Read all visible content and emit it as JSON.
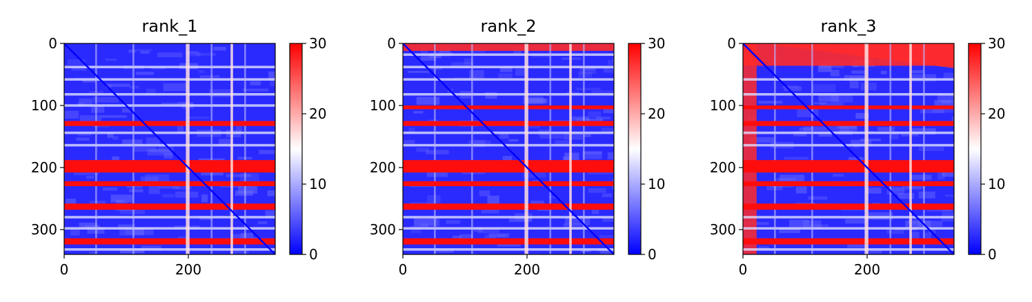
{
  "chart_data": [
    {
      "type": "heatmap",
      "title": "rank_1",
      "xlim": [
        0,
        340
      ],
      "ylim": [
        340,
        0
      ],
      "x_ticks": [
        0,
        200
      ],
      "y_ticks": [
        0,
        100,
        200,
        300
      ],
      "colorbar": {
        "range": [
          0,
          30
        ],
        "ticks": [
          0,
          10,
          20,
          30
        ],
        "colormap": [
          "#0000ff",
          "#ffffff",
          "#ff0000"
        ]
      },
      "red_bands": [
        [
          125,
          133
        ],
        [
          188,
          208
        ],
        [
          222,
          230
        ],
        [
          258,
          268
        ],
        [
          314,
          324
        ]
      ],
      "light_bands": [
        [
          36,
          40
        ],
        [
          56,
          60
        ],
        [
          80,
          84
        ],
        [
          98,
          102
        ],
        [
          142,
          146
        ],
        [
          162,
          166
        ],
        [
          278,
          282
        ],
        [
          296,
          300
        ],
        [
          330,
          334
        ]
      ],
      "pale_cols": [
        [
          50,
          53
        ],
        [
          110,
          113
        ],
        [
          236,
          239
        ],
        [
          290,
          293
        ]
      ],
      "white_cols": [
        [
          196,
          202
        ],
        [
          268,
          272
        ]
      ],
      "top_red_band": 0,
      "left_red_band": 0,
      "upper_right_red": false
    },
    {
      "type": "heatmap",
      "title": "rank_2",
      "xlim": [
        0,
        340
      ],
      "ylim": [
        340,
        0
      ],
      "x_ticks": [
        0,
        200
      ],
      "y_ticks": [
        0,
        100,
        200,
        300
      ],
      "colorbar": {
        "range": [
          0,
          30
        ],
        "ticks": [
          0,
          10,
          20,
          30
        ],
        "colormap": [
          "#0000ff",
          "#ffffff",
          "#ff0000"
        ]
      },
      "red_bands": [
        [
          100,
          106
        ],
        [
          125,
          133
        ],
        [
          188,
          208
        ],
        [
          222,
          230
        ],
        [
          258,
          268
        ],
        [
          314,
          324
        ]
      ],
      "light_bands": [
        [
          16,
          20
        ],
        [
          36,
          40
        ],
        [
          56,
          60
        ],
        [
          80,
          84
        ],
        [
          142,
          146
        ],
        [
          162,
          166
        ],
        [
          278,
          282
        ],
        [
          296,
          300
        ],
        [
          330,
          334
        ]
      ],
      "pale_cols": [
        [
          50,
          53
        ],
        [
          110,
          113
        ],
        [
          236,
          239
        ],
        [
          290,
          293
        ]
      ],
      "white_cols": [
        [
          196,
          202
        ],
        [
          268,
          272
        ]
      ],
      "top_red_band": 12,
      "left_red_band": 0,
      "upper_right_red": false
    },
    {
      "type": "heatmap",
      "title": "rank_3",
      "xlim": [
        0,
        340
      ],
      "ylim": [
        340,
        0
      ],
      "x_ticks": [
        0,
        200
      ],
      "y_ticks": [
        0,
        100,
        200,
        300
      ],
      "colorbar": {
        "range": [
          0,
          30
        ],
        "ticks": [
          0,
          10,
          20,
          30
        ],
        "colormap": [
          "#0000ff",
          "#ffffff",
          "#ff0000"
        ]
      },
      "red_bands": [
        [
          100,
          106
        ],
        [
          125,
          133
        ],
        [
          188,
          208
        ],
        [
          222,
          230
        ],
        [
          258,
          268
        ],
        [
          314,
          324
        ]
      ],
      "light_bands": [
        [
          56,
          60
        ],
        [
          80,
          84
        ],
        [
          142,
          146
        ],
        [
          162,
          166
        ],
        [
          278,
          282
        ],
        [
          296,
          300
        ],
        [
          330,
          334
        ]
      ],
      "pale_cols": [
        [
          50,
          53
        ],
        [
          110,
          113
        ],
        [
          236,
          239
        ],
        [
          290,
          293
        ]
      ],
      "white_cols": [
        [
          196,
          202
        ],
        [
          268,
          272
        ]
      ],
      "top_red_band": 36,
      "left_red_band": 22,
      "upper_right_red": true
    }
  ]
}
